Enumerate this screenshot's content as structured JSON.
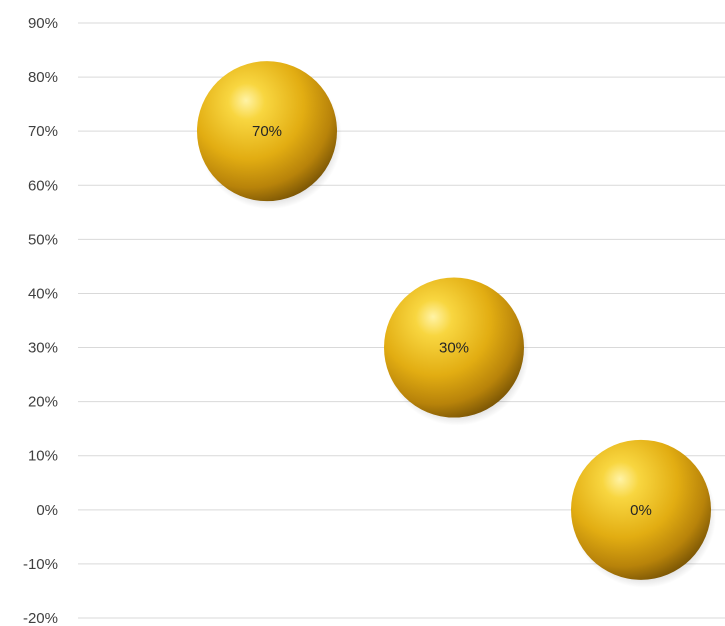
{
  "chart_data": {
    "type": "scatter",
    "title": "",
    "xlabel": "",
    "ylabel": "",
    "ylim": [
      -0.2,
      0.9
    ],
    "yticks": [
      -0.2,
      -0.1,
      0,
      0.1,
      0.2,
      0.3,
      0.4,
      0.5,
      0.6,
      0.7,
      0.8,
      0.9
    ],
    "ytick_labels": [
      "-20%",
      "-10%",
      "0%",
      "10%",
      "20%",
      "30%",
      "40%",
      "50%",
      "60%",
      "70%",
      "80%",
      "90%"
    ],
    "xlim": [
      0,
      3
    ],
    "grid": true,
    "legend": "none",
    "bubble_color": "#e8b923",
    "points": [
      {
        "x": 1,
        "y": 0.7,
        "label": "70%"
      },
      {
        "x": 2,
        "y": 0.3,
        "label": "30%"
      },
      {
        "x": 3,
        "y": 0.0,
        "label": "0%"
      }
    ]
  }
}
